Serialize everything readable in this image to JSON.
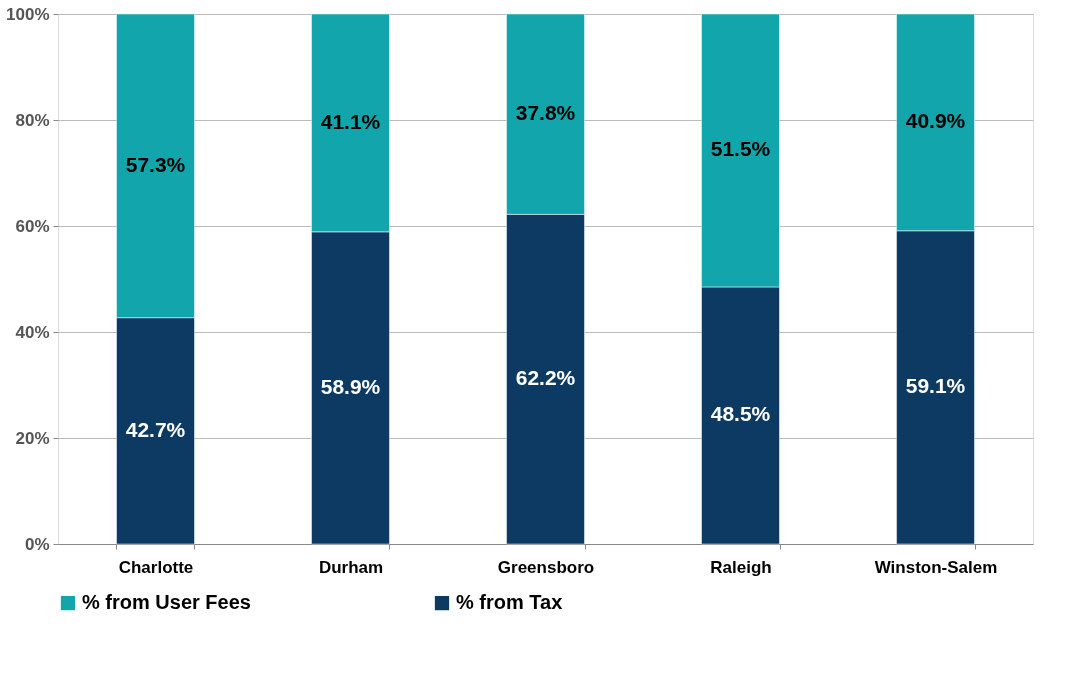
{
  "chart_data": {
    "type": "bar",
    "stacked": true,
    "categories": [
      "Charlotte",
      "Durham",
      "Greensboro",
      "Raleigh",
      "Winston-Salem"
    ],
    "series": [
      {
        "name": "% from Tax",
        "color": "#0d3a63",
        "values": [
          42.7,
          58.9,
          62.2,
          48.5,
          59.1
        ],
        "value_labels": [
          "42.7%",
          "58.9%",
          "62.2%",
          "48.5%",
          "59.1%"
        ]
      },
      {
        "name": "% from User Fees",
        "color": "#12a5ab",
        "values": [
          57.3,
          41.1,
          37.8,
          51.5,
          40.9
        ],
        "value_labels": [
          "57.3%",
          "41.1%",
          "37.8%",
          "51.5%",
          "40.9%"
        ]
      }
    ],
    "ylim": [
      0,
      100
    ],
    "yticks": [
      {
        "value": 0,
        "label": "0%"
      },
      {
        "value": 20,
        "label": "20%"
      },
      {
        "value": 40,
        "label": "40%"
      },
      {
        "value": 60,
        "label": "60%"
      },
      {
        "value": 80,
        "label": "80%"
      },
      {
        "value": 100,
        "label": "100%"
      }
    ],
    "grid": "y",
    "legend": "bottom"
  }
}
